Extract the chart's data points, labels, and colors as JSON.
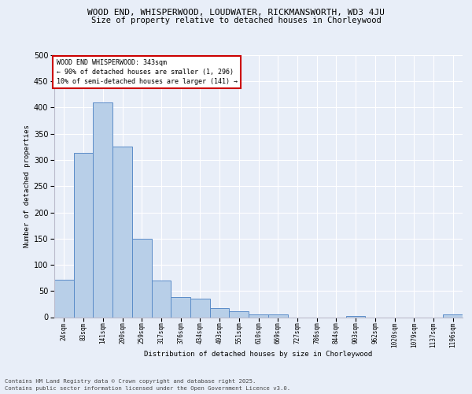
{
  "title_line1": "WOOD END, WHISPERWOOD, LOUDWATER, RICKMANSWORTH, WD3 4JU",
  "title_line2": "Size of property relative to detached houses in Chorleywood",
  "xlabel": "Distribution of detached houses by size in Chorleywood",
  "ylabel": "Number of detached properties",
  "categories": [
    "24sqm",
    "83sqm",
    "141sqm",
    "200sqm",
    "259sqm",
    "317sqm",
    "376sqm",
    "434sqm",
    "493sqm",
    "551sqm",
    "610sqm",
    "669sqm",
    "727sqm",
    "786sqm",
    "844sqm",
    "903sqm",
    "962sqm",
    "1020sqm",
    "1079sqm",
    "1137sqm",
    "1196sqm"
  ],
  "values": [
    72,
    314,
    410,
    325,
    150,
    70,
    38,
    36,
    18,
    11,
    6,
    6,
    0,
    0,
    0,
    3,
    0,
    0,
    0,
    0,
    5
  ],
  "bar_color": "#b8cfe8",
  "bar_edge_color": "#5b8cc8",
  "annotation_title": "WOOD END WHISPERWOOD: 343sqm",
  "annotation_line2": "← 90% of detached houses are smaller (1, 296)",
  "annotation_line3": "10% of semi-detached houses are larger (141) →",
  "annotation_box_color": "#ffffff",
  "annotation_box_edge": "#cc0000",
  "bg_color": "#e8eef8",
  "grid_color": "#ffffff",
  "footer_line1": "Contains HM Land Registry data © Crown copyright and database right 2025.",
  "footer_line2": "Contains public sector information licensed under the Open Government Licence v3.0.",
  "ylim": [
    0,
    500
  ],
  "yticks": [
    0,
    50,
    100,
    150,
    200,
    250,
    300,
    350,
    400,
    450,
    500
  ]
}
